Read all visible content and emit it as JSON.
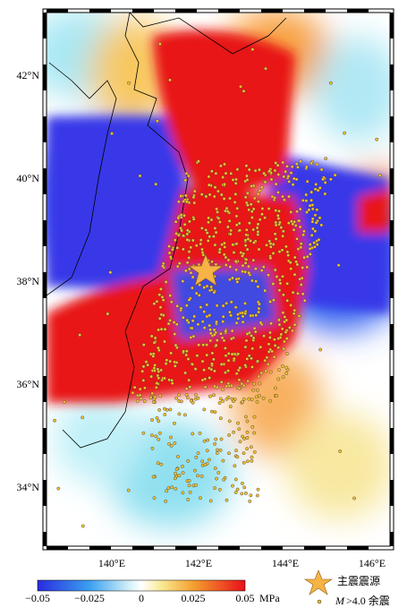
{
  "map": {
    "lat_labels": [
      "42°N",
      "40°N",
      "38°N",
      "36°N",
      "34°N"
    ],
    "lon_labels": [
      "140°E",
      "142°E",
      "144°E",
      "146°E"
    ]
  },
  "colorbar": {
    "tick_labels": [
      "−0.05",
      "−0.025",
      "0",
      "0.025",
      "0.05"
    ],
    "unit": "MPa"
  },
  "legend": {
    "mainshock": "主震震源",
    "aftershock_symbol": "M",
    "aftershock": ">4.0 余震"
  }
}
